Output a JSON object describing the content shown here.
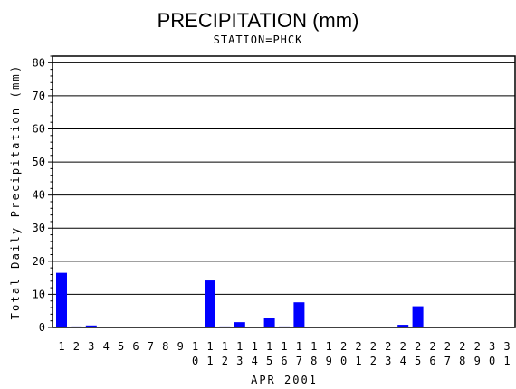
{
  "chart_data": {
    "type": "bar",
    "title": "PRECIPITATION (mm)",
    "subtitle": "STATION=PHCK",
    "xlabel": "APR 2001",
    "ylabel": "Total Daily Precipitation (mm)",
    "ylim": [
      0,
      82
    ],
    "yticks": [
      0,
      10,
      20,
      30,
      40,
      50,
      60,
      70,
      80
    ],
    "grid": true,
    "categories": [
      "1",
      "2",
      "3",
      "4",
      "5",
      "6",
      "7",
      "8",
      "9",
      "10",
      "11",
      "12",
      "13",
      "14",
      "15",
      "16",
      "17",
      "18",
      "19",
      "20",
      "21",
      "22",
      "23",
      "24",
      "25",
      "26",
      "27",
      "28",
      "29",
      "30",
      "31"
    ],
    "values": [
      16.5,
      0.3,
      0.6,
      0,
      0,
      0,
      0,
      0,
      0,
      0,
      14.2,
      0.3,
      1.6,
      0,
      3.0,
      0.3,
      7.6,
      0,
      0,
      0,
      0,
      0,
      0,
      0.8,
      6.4,
      0,
      0,
      0,
      0,
      0,
      0
    ],
    "bar_color": "#0000ff"
  }
}
